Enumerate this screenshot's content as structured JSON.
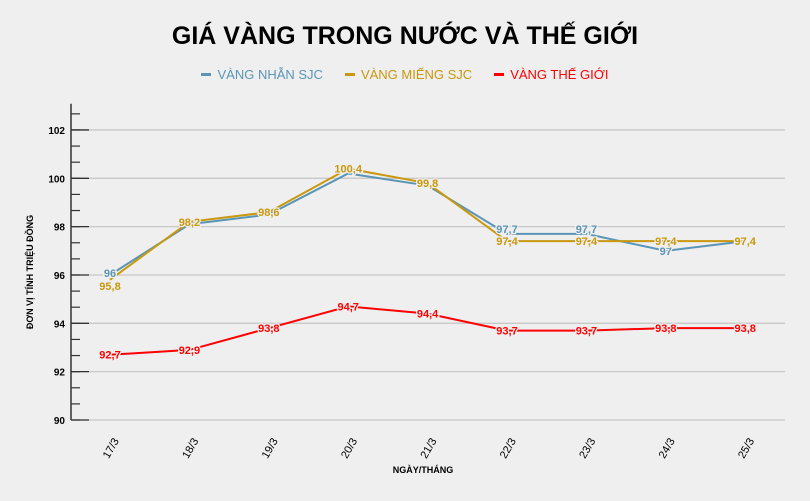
{
  "chart_data": {
    "type": "line",
    "title": "GIÁ VÀNG TRONG NƯỚC VÀ THẾ GIỚI",
    "xlabel": "NGÀY/THÁNG",
    "ylabel": "ĐƠN VỊ TÍNH TRIỆU ĐỒNG",
    "categories": [
      "17/3",
      "18/3",
      "19/3",
      "20/3",
      "21/3",
      "22/3",
      "23/3",
      "24/3",
      "25/3"
    ],
    "ylim": [
      90,
      103
    ],
    "yticks": [
      90,
      92,
      94,
      96,
      98,
      100,
      102
    ],
    "grid": true,
    "legend": "top",
    "series": [
      {
        "name": "VÀNG NHẪN SJC",
        "color": "#5b95b5",
        "values": [
          96,
          98.1,
          98.5,
          100.2,
          99.7,
          97.7,
          97.7,
          97,
          97.4
        ],
        "labels_shown": [
          true,
          false,
          false,
          false,
          false,
          true,
          true,
          true,
          false
        ]
      },
      {
        "name": "VÀNG MIẾNG SJC",
        "color": "#c9980c",
        "values": [
          95.8,
          98.2,
          98.6,
          100.4,
          99.8,
          97.4,
          97.4,
          97.4,
          97.4
        ],
        "labels_shown": [
          true,
          true,
          true,
          true,
          true,
          true,
          true,
          true,
          true
        ]
      },
      {
        "name": "VÀNG THẾ GIỚI",
        "color": "#ff0000",
        "values": [
          92.7,
          92.9,
          93.8,
          94.7,
          94.4,
          93.7,
          93.7,
          93.8,
          93.8
        ],
        "labels_shown": [
          true,
          true,
          true,
          true,
          true,
          true,
          true,
          true,
          true
        ]
      }
    ]
  }
}
